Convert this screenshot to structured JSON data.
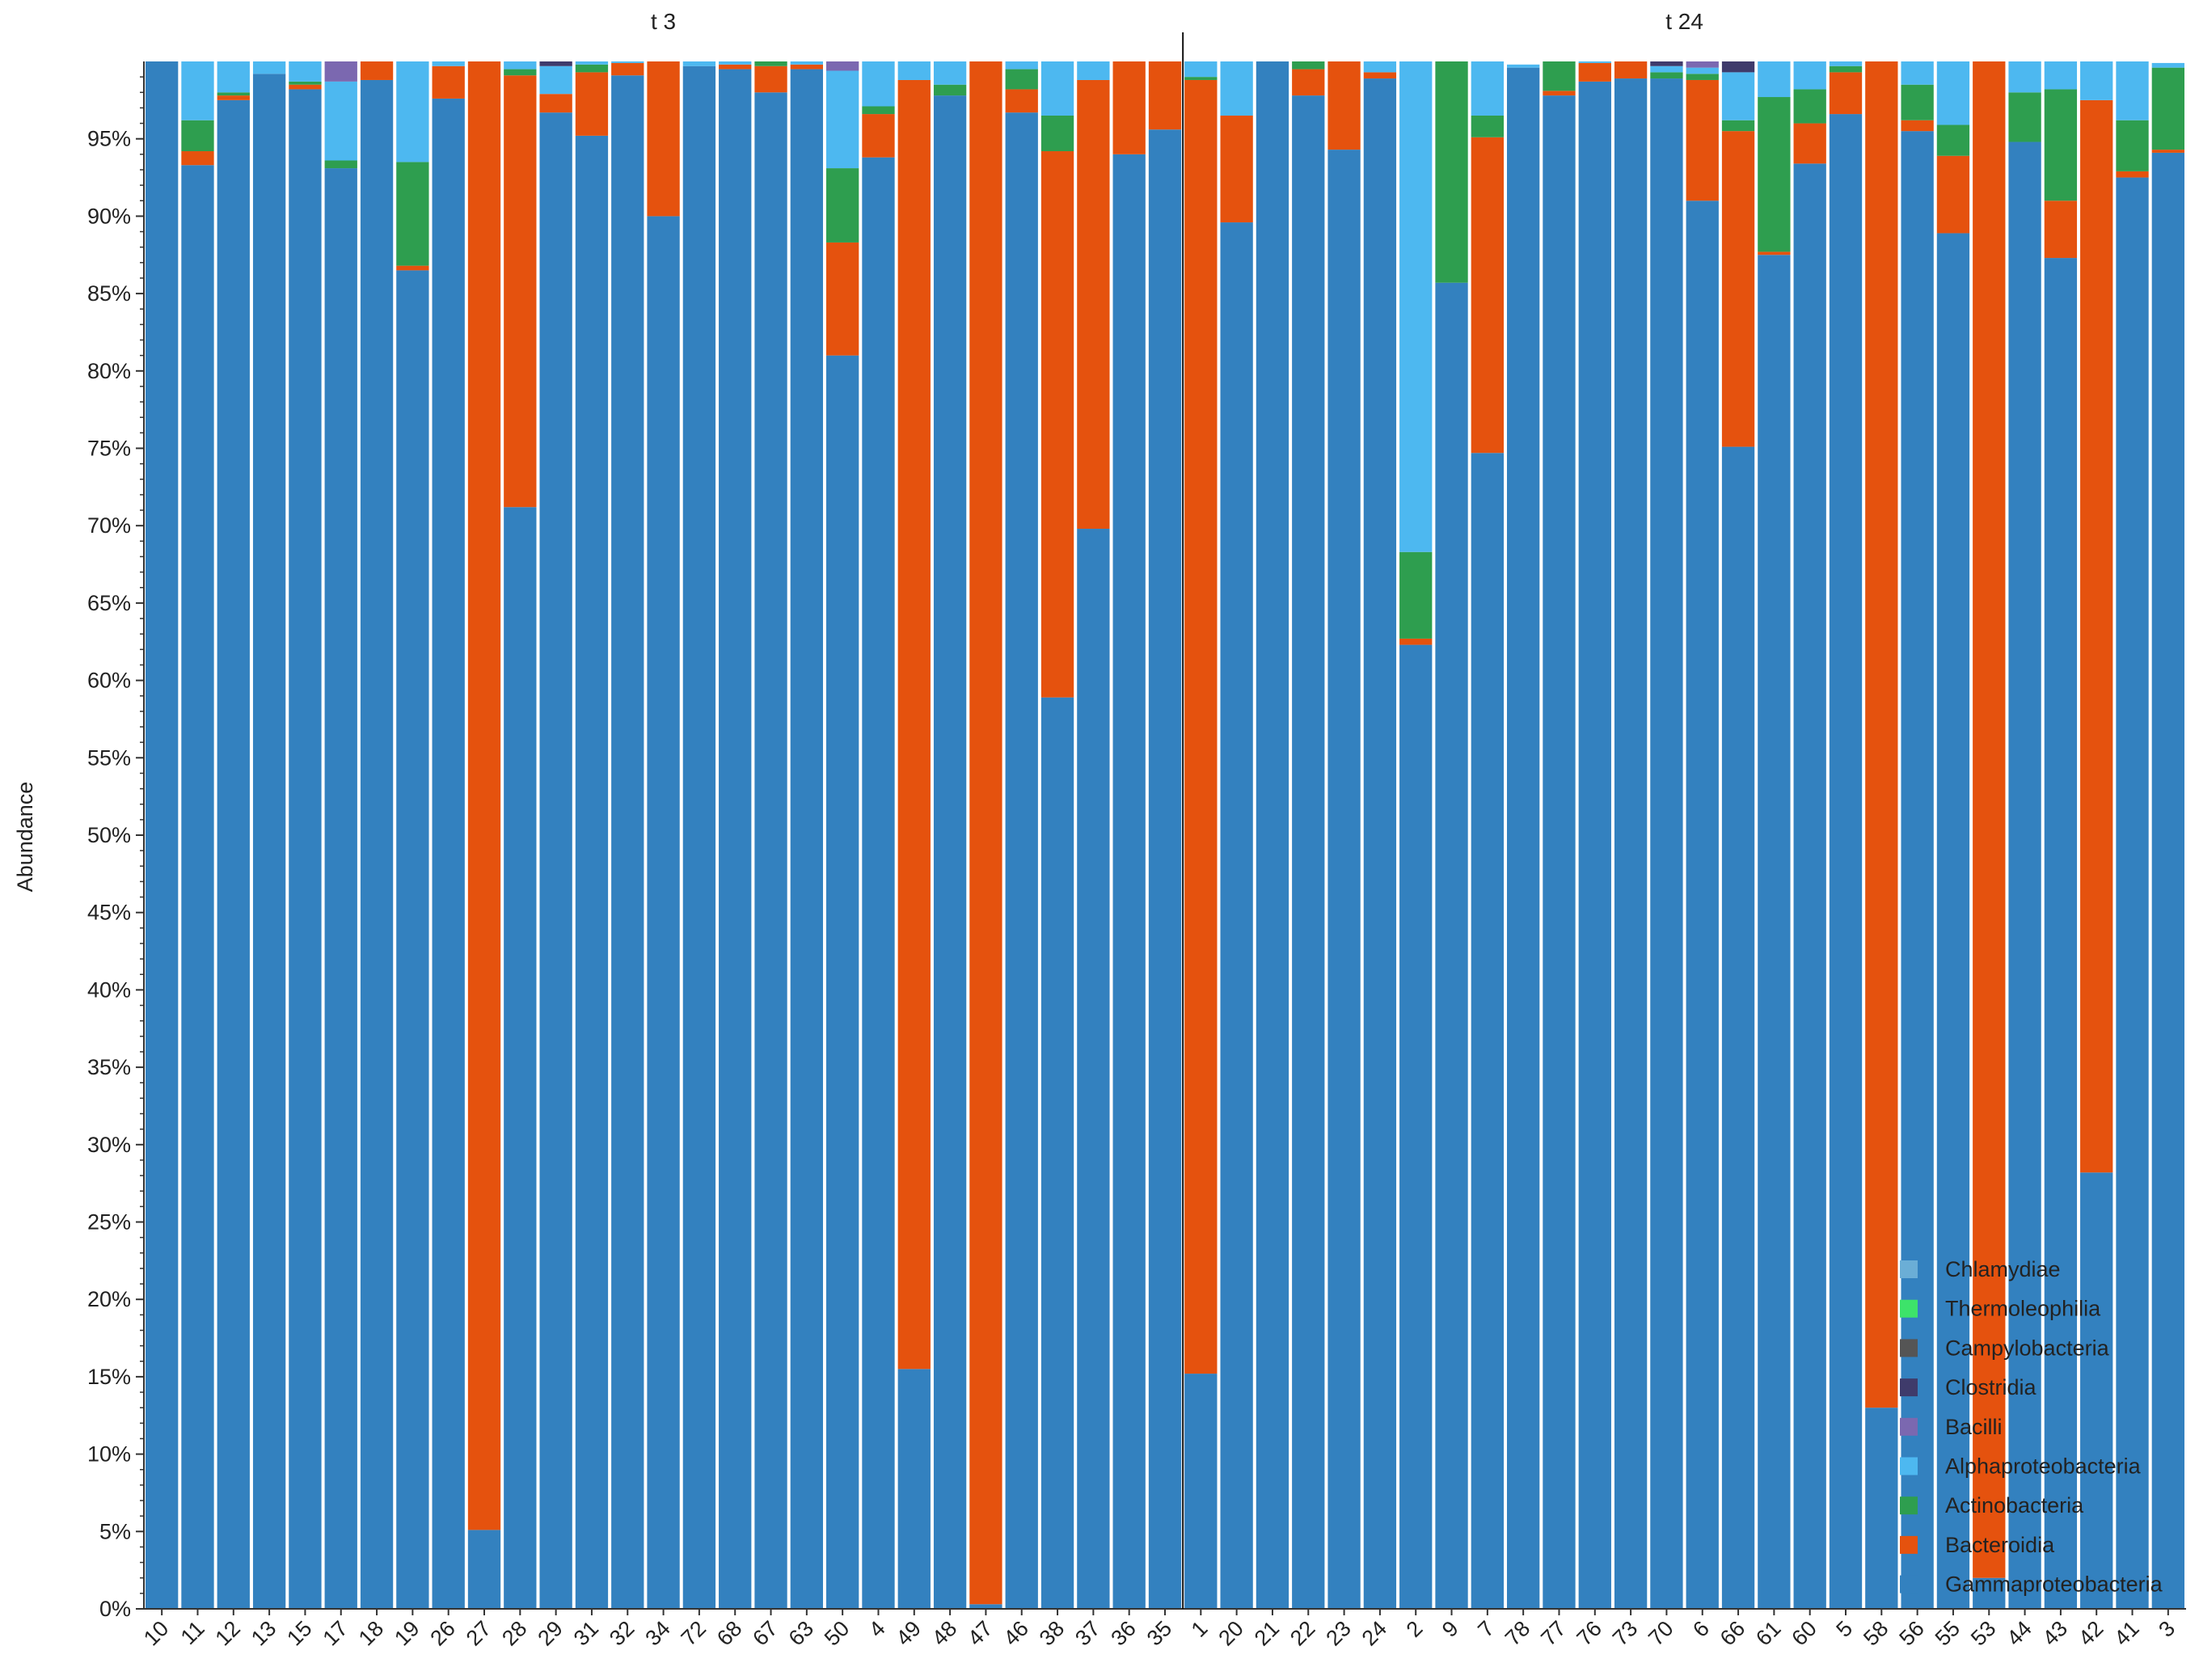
{
  "chart_data": {
    "type": "bar",
    "stacked": true,
    "ylabel": "Abundance",
    "ylim": [
      0,
      100
    ],
    "y_ticks": [
      "0%",
      "5%",
      "10%",
      "15%",
      "20%",
      "25%",
      "30%",
      "35%",
      "40%",
      "45%",
      "50%",
      "55%",
      "60%",
      "65%",
      "70%",
      "75%",
      "80%",
      "85%",
      "90%",
      "95%"
    ],
    "legend_position": "right",
    "legend": [
      {
        "name": "Chlamydiae",
        "color": "#6baed6"
      },
      {
        "name": "Thermoleophilia",
        "color": "#3de36a"
      },
      {
        "name": "Campylobacteria",
        "color": "#555555"
      },
      {
        "name": "Clostridia",
        "color": "#3f3b6b"
      },
      {
        "name": "Bacilli",
        "color": "#7b68b0"
      },
      {
        "name": "Alphaproteobacteria",
        "color": "#4db8f0"
      },
      {
        "name": "Actinobacteria",
        "color": "#2e9e4f"
      },
      {
        "name": "Bacteroidia",
        "color": "#e5520e"
      },
      {
        "name": "Gammaproteobacteria",
        "color": "#3381bf"
      }
    ],
    "series_order": [
      "Gammaproteobacteria",
      "Bacteroidia",
      "Actinobacteria",
      "Alphaproteobacteria",
      "Bacilli",
      "Clostridia",
      "Campylobacteria",
      "Thermoleophilia",
      "Chlamydiae"
    ],
    "panels": [
      {
        "title": "t 3",
        "categories": [
          "10",
          "11",
          "12",
          "13",
          "15",
          "17",
          "18",
          "19",
          "26",
          "27",
          "28",
          "29",
          "31",
          "32",
          "34",
          "72",
          "68",
          "67",
          "63",
          "50",
          "4",
          "49",
          "48",
          "47",
          "46",
          "38",
          "37",
          "36",
          "35"
        ],
        "series": [
          {
            "name": "Gammaproteobacteria",
            "values": [
              100,
              93.3,
              97.5,
              99.2,
              98.2,
              93.1,
              98.8,
              86.5,
              97.6,
              5.1,
              71.2,
              96.7,
              95.2,
              99.1,
              90,
              99.7,
              99.5,
              98,
              99.5,
              81,
              93.8,
              15.5,
              97.8,
              0.3,
              96.7,
              58.9,
              69.8,
              94,
              95.6
            ]
          },
          {
            "name": "Bacteroidia",
            "values": [
              0,
              0.9,
              0.3,
              0,
              0.3,
              0,
              1.2,
              0.3,
              2.1,
              94.9,
              27.9,
              1.2,
              4.1,
              0.8,
              10,
              0,
              0.3,
              1.7,
              0.3,
              7.3,
              2.8,
              83.3,
              0,
              99.7,
              1.5,
              35.3,
              29,
              6,
              4.4
            ]
          },
          {
            "name": "Actinobacteria",
            "values": [
              0,
              2,
              0.2,
              0,
              0.2,
              0.5,
              0,
              6.7,
              0,
              0,
              0.4,
              0,
              0.5,
              0,
              0,
              0,
              0,
              0.3,
              0,
              4.8,
              0.5,
              0,
              0.7,
              0,
              1.3,
              2.3,
              0,
              0,
              0
            ]
          },
          {
            "name": "Alphaproteobacteria",
            "values": [
              0,
              3.8,
              2,
              0.8,
              1.3,
              5.1,
              0,
              6.5,
              0.3,
              0,
              0.5,
              1.8,
              0.2,
              0.1,
              0,
              0.3,
              0.2,
              0,
              0.2,
              6.3,
              2.9,
              1.2,
              1.5,
              0,
              0.5,
              3.5,
              1.2,
              0,
              0
            ]
          },
          {
            "name": "Bacilli",
            "values": [
              0,
              0,
              0,
              0,
              0,
              1.3,
              0,
              0,
              0,
              0,
              0,
              0,
              0,
              0,
              0,
              0,
              0,
              0,
              0,
              0.6,
              0,
              0,
              0,
              0,
              0,
              0,
              0,
              0,
              0
            ]
          },
          {
            "name": "Clostridia",
            "values": [
              0,
              0,
              0,
              0,
              0,
              0,
              0,
              0,
              0,
              0,
              0,
              0.3,
              0,
              0,
              0,
              0,
              0,
              0,
              0,
              0,
              0,
              0,
              0,
              0,
              0,
              0,
              0,
              0,
              0
            ]
          },
          {
            "name": "Campylobacteria",
            "values": [
              0,
              0,
              0,
              0,
              0,
              0,
              0,
              0,
              0,
              0,
              0,
              0,
              0,
              0,
              0,
              0,
              0,
              0,
              0,
              0,
              0,
              0,
              0,
              0,
              0,
              0,
              0,
              0,
              0
            ]
          },
          {
            "name": "Thermoleophilia",
            "values": [
              0,
              0,
              0,
              0,
              0,
              0,
              0,
              0,
              0,
              0,
              0,
              0,
              0,
              0,
              0,
              0,
              0,
              0,
              0,
              0,
              0,
              0,
              0,
              0,
              0,
              0,
              0,
              0,
              0
            ]
          },
          {
            "name": "Chlamydiae",
            "values": [
              0,
              0,
              0,
              0,
              0,
              0,
              0,
              0,
              0,
              0,
              0,
              0,
              0,
              0,
              0,
              0,
              0,
              0,
              0,
              0,
              0,
              0,
              0,
              0,
              0,
              0,
              0,
              0,
              0
            ]
          }
        ]
      },
      {
        "title": "t 24",
        "categories": [
          "1",
          "20",
          "21",
          "22",
          "23",
          "24",
          "2",
          "9",
          "7",
          "78",
          "77",
          "76",
          "73",
          "70",
          "6",
          "66",
          "61",
          "60",
          "5",
          "58",
          "56",
          "55",
          "53",
          "44",
          "43",
          "42",
          "41",
          "3"
        ],
        "series": [
          {
            "name": "Gammaproteobacteria",
            "values": [
              15.2,
              89.6,
              100,
              97.8,
              94.3,
              98.9,
              62.3,
              85.7,
              74.7,
              99.6,
              97.8,
              98.7,
              98.9,
              98.9,
              91,
              75.1,
              87.5,
              93.4,
              96.6,
              13,
              95.5,
              88.9,
              2,
              94.8,
              87.3,
              28.2,
              92.5,
              94.1
            ]
          },
          {
            "name": "Bacteroidia",
            "values": [
              83.6,
              6.9,
              0,
              1.7,
              5.7,
              0.4,
              0.4,
              0,
              20.4,
              0,
              0.3,
              1.2,
              1.1,
              0,
              7.8,
              20.4,
              0.2,
              2.6,
              2.7,
              87,
              0.7,
              5,
              98,
              0,
              3.7,
              69.3,
              0.4,
              0.2
            ]
          },
          {
            "name": "Actinobacteria",
            "values": [
              0.2,
              0,
              0,
              0.5,
              0,
              0,
              5.6,
              14.3,
              1.4,
              0,
              1.9,
              0,
              0,
              0.4,
              0.4,
              0.7,
              10,
              2.2,
              0.4,
              0,
              2.3,
              2,
              0,
              3.2,
              7.2,
              0,
              3.3,
              5.3
            ]
          },
          {
            "name": "Alphaproteobacteria",
            "values": [
              1,
              3.5,
              0,
              0,
              0,
              0.7,
              31.7,
              0,
              3.5,
              0.2,
              0,
              0.1,
              0,
              0.4,
              0.4,
              3.1,
              2.3,
              1.8,
              0.3,
              0,
              1.5,
              4.1,
              0,
              2,
              1.8,
              2.5,
              3.8,
              0.3
            ]
          },
          {
            "name": "Bacilli",
            "values": [
              0,
              0,
              0,
              0,
              0,
              0,
              0,
              0,
              0,
              0,
              0,
              0,
              0,
              0,
              0.4,
              0,
              0,
              0,
              0,
              0,
              0,
              0,
              0,
              0,
              0,
              0,
              0,
              0
            ]
          },
          {
            "name": "Clostridia",
            "values": [
              0,
              0,
              0,
              0,
              0,
              0,
              0,
              0,
              0,
              0,
              0,
              0,
              0,
              0.3,
              0,
              0.7,
              0,
              0,
              0,
              0,
              0,
              0,
              0,
              0,
              0,
              0,
              0,
              0
            ]
          },
          {
            "name": "Campylobacteria",
            "values": [
              0,
              0,
              0,
              0,
              0,
              0,
              0,
              0,
              0,
              0,
              0,
              0,
              0,
              0,
              0,
              0,
              0,
              0,
              0,
              0,
              0,
              0,
              0,
              0,
              0,
              0,
              0,
              0
            ]
          },
          {
            "name": "Thermoleophilia",
            "values": [
              0,
              0,
              0,
              0,
              0,
              0,
              0,
              0,
              0,
              0,
              0,
              0,
              0,
              0,
              0,
              0,
              0,
              0,
              0,
              0,
              0,
              0,
              0,
              0,
              0,
              0,
              0,
              0
            ]
          },
          {
            "name": "Chlamydiae",
            "values": [
              0,
              0,
              0,
              0,
              0,
              0,
              0,
              0,
              0,
              0,
              0,
              0,
              0,
              0,
              0,
              0,
              0,
              0,
              0,
              0,
              0,
              0,
              0,
              0,
              0,
              0,
              0,
              0
            ]
          }
        ]
      }
    ]
  }
}
